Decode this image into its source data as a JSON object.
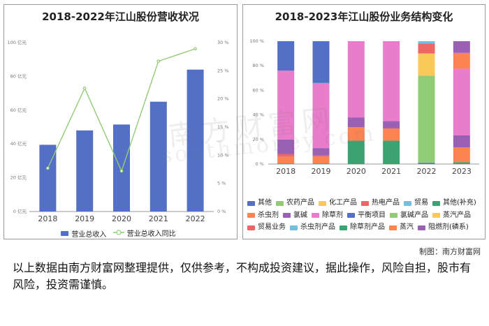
{
  "left": {
    "title": "2018-2022年江山股份营收状况",
    "legend": [
      "营业总收入",
      "营业总收入同比"
    ]
  },
  "right": {
    "title": "2018-2023年江山股份业务结构变化"
  },
  "credit": "制图：南方财富网",
  "disclaimer": "以上数据由南方财富网整理提供，仅供参考，不构成投资建议，据此操作，风险自担，股市有风险，投资需谨慎。",
  "watermark": {
    "cn": "南方财富网",
    "en": "southmoney.com"
  },
  "colors": {
    "bar": "#5470c6",
    "line": "#91cc75"
  },
  "chart_data": [
    {
      "type": "bar",
      "title": "2018-2022年江山股份营收状况",
      "categories": [
        "2018",
        "2019",
        "2020",
        "2021",
        "2022"
      ],
      "y_ticks": [
        "0 亿元",
        "20 亿元",
        "40 亿元",
        "60 亿元",
        "80 亿元",
        "100 亿元"
      ],
      "y2_ticks": [
        "0 %",
        "5 %",
        "10 %",
        "15 %",
        "20 %",
        "25 %",
        "30 %"
      ],
      "ylim": [
        0,
        100
      ],
      "y2lim": [
        0,
        30
      ],
      "series": [
        {
          "name": "营业总收入",
          "type": "bar",
          "axis": "left",
          "color": "#5470c6",
          "values": [
            39.5,
            48,
            51.5,
            65,
            84
          ]
        },
        {
          "name": "营业总收入同比",
          "type": "line",
          "axis": "right",
          "color": "#91cc75",
          "values": [
            7.7,
            21.9,
            7.2,
            26.7,
            28.9
          ]
        }
      ],
      "grid": false,
      "legend_position": "bottom"
    },
    {
      "type": "bar",
      "stacked": true,
      "title": "2018-2023年江山股份业务结构变化",
      "categories": [
        "2018",
        "2019",
        "2020",
        "2021",
        "2022",
        "2023"
      ],
      "y_ticks": [
        "0 %",
        "20 %",
        "40 %",
        "60 %",
        "80 %",
        "100 %"
      ],
      "ylim": [
        0,
        100
      ],
      "legend_position": "bottom",
      "legend": [
        {
          "name": "其他",
          "color": "#5470c6"
        },
        {
          "name": "农药产品",
          "color": "#91cc75"
        },
        {
          "name": "化工产品",
          "color": "#fac858"
        },
        {
          "name": "热电产品",
          "color": "#ee6666"
        },
        {
          "name": "贸易",
          "color": "#73c0de"
        },
        {
          "name": "其他(补充)",
          "color": "#3ba272"
        },
        {
          "name": "杀虫剂",
          "color": "#fc8452"
        },
        {
          "name": "氯碱",
          "color": "#9a60b4"
        },
        {
          "name": "除草剂",
          "color": "#ea7ccc"
        },
        {
          "name": "平衡项目",
          "color": "#5470c6"
        },
        {
          "name": "氯碱产品",
          "color": "#91cc75"
        },
        {
          "name": "蒸汽产品",
          "color": "#fac858"
        },
        {
          "name": "贸易业务",
          "color": "#ee6666"
        },
        {
          "name": "杀虫剂产品",
          "color": "#73c0de"
        },
        {
          "name": "除草剂产品",
          "color": "#3ba272"
        },
        {
          "name": "蒸汽",
          "color": "#fc8452"
        },
        {
          "name": "阻燃剂(磷系)",
          "color": "#9a60b4"
        }
      ],
      "stacks": [
        [
          {
            "name": "其他(补充)",
            "color": "#3ba272",
            "value": 0.5
          },
          {
            "name": "杀虫剂",
            "color": "#fc8452",
            "value": 5.5
          },
          {
            "name": "热电产品",
            "color": "#ee6666",
            "value": 2
          },
          {
            "name": "氯碱",
            "color": "#9a60b4",
            "value": 12
          },
          {
            "name": "除草剂",
            "color": "#ea7ccc",
            "value": 56
          },
          {
            "name": "其他",
            "color": "#5470c6",
            "value": 24
          }
        ],
        [
          {
            "name": "其他(补充)",
            "color": "#3ba272",
            "value": 0.5
          },
          {
            "name": "杀虫剂",
            "color": "#fc8452",
            "value": 5.5
          },
          {
            "name": "热电产品",
            "color": "#ee6666",
            "value": 1
          },
          {
            "name": "氯碱",
            "color": "#9a60b4",
            "value": 6
          },
          {
            "name": "除草剂",
            "color": "#ea7ccc",
            "value": 53
          },
          {
            "name": "其他",
            "color": "#5470c6",
            "value": 34
          }
        ],
        [
          {
            "name": "其他(补充)",
            "color": "#3ba272",
            "value": 19
          },
          {
            "name": "杀虫剂",
            "color": "#fc8452",
            "value": 11
          },
          {
            "name": "氯碱",
            "color": "#9a60b4",
            "value": 8
          },
          {
            "name": "除草剂",
            "color": "#ea7ccc",
            "value": 62
          }
        ],
        [
          {
            "name": "其他(补充)",
            "color": "#3ba272",
            "value": 19
          },
          {
            "name": "杀虫剂",
            "color": "#fc8452",
            "value": 10
          },
          {
            "name": "氯碱",
            "color": "#9a60b4",
            "value": 6
          },
          {
            "name": "除草剂",
            "color": "#ea7ccc",
            "value": 65
          }
        ],
        [
          {
            "name": "其他",
            "color": "#5470c6",
            "value": 1
          },
          {
            "name": "农药产品",
            "color": "#91cc75",
            "value": 71
          },
          {
            "name": "化工产品",
            "color": "#fac858",
            "value": 18
          },
          {
            "name": "热电产品",
            "color": "#ee6666",
            "value": 8
          },
          {
            "name": "贸易",
            "color": "#73c0de",
            "value": 2
          }
        ],
        [
          {
            "name": "平衡项目",
            "color": "#5470c6",
            "value": 0.5
          },
          {
            "name": "除草剂产品",
            "color": "#3ba272",
            "value": 1
          },
          {
            "name": "杀虫剂产品",
            "color": "#fc8452",
            "value": 12
          },
          {
            "name": "阻燃剂(磷系)",
            "color": "#9a60b4",
            "value": 10
          },
          {
            "name": "除草剂",
            "color": "#ea7ccc",
            "value": 54
          },
          {
            "name": "蒸汽",
            "color": "#fc8452",
            "value": 13
          },
          {
            "name": "其他",
            "color": "#9a60b4",
            "value": 9.5
          }
        ]
      ]
    }
  ]
}
